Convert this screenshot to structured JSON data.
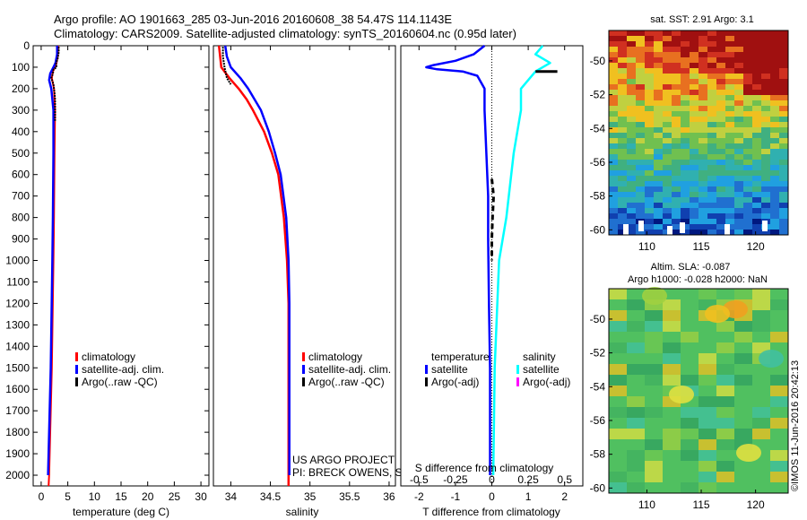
{
  "header": {
    "line1": "Argo profile: AO 1901663_285 03-Jun-2016 20160608_38 54.47S 114.1143E",
    "line2": "Climatology: CARS2009. Satellite-adjusted climatology: synTS_20160604.nc (0.95d later)"
  },
  "colors": {
    "climatology": "#ff0000",
    "satellite": "#0000ff",
    "argo": "#000000",
    "satellite_salinity": "#00ffff",
    "argo_salinity": "#ff00ff"
  },
  "chart_data": [
    {
      "id": "temperature",
      "type": "line",
      "xlabel": "temperature (deg C)",
      "xlim": [
        -1.5,
        31.5
      ],
      "xticks": [
        "0",
        "5",
        "10",
        "15",
        "20",
        "25",
        "30"
      ],
      "xtick_values": [
        0,
        5,
        10,
        15,
        20,
        25,
        30
      ],
      "ylim": [
        0,
        2050
      ],
      "yticks": [
        "0",
        "100",
        "200",
        "300",
        "400",
        "500",
        "600",
        "700",
        "800",
        "900",
        "1000",
        "1100",
        "1200",
        "1300",
        "1400",
        "1500",
        "1600",
        "1700",
        "1800",
        "1900",
        "2000"
      ],
      "ytick_values": [
        0,
        100,
        200,
        300,
        400,
        500,
        600,
        700,
        800,
        900,
        1000,
        1100,
        1200,
        1300,
        1400,
        1500,
        1600,
        1700,
        1800,
        1900,
        2000
      ],
      "legend": [
        "climatology",
        "satellite-adj. clim.",
        "Argo(..raw -QC)"
      ],
      "series": [
        {
          "name": "climatology",
          "depth": [
            0,
            50,
            80,
            100,
            120,
            150,
            200,
            300,
            500,
            800,
            1000,
            1500,
            2000,
            2050
          ],
          "values": [
            3.2,
            3.1,
            2.9,
            2.6,
            2.2,
            2.0,
            2.4,
            2.6,
            2.5,
            2.4,
            2.3,
            2.0,
            1.5,
            1.4
          ]
        },
        {
          "name": "satellite-adj. clim.",
          "depth": [
            0,
            40,
            80,
            100,
            130,
            160,
            200,
            300,
            500,
            800,
            1000,
            1500,
            2000
          ],
          "values": [
            3.0,
            3.0,
            2.7,
            2.3,
            1.7,
            1.5,
            1.9,
            2.3,
            2.3,
            2.2,
            2.1,
            1.8,
            1.3
          ]
        },
        {
          "name": "Argo(..raw -QC)",
          "depth": [
            5,
            30,
            60,
            80,
            100,
            110,
            130,
            150,
            180,
            220,
            250,
            300,
            350
          ],
          "values": [
            3.3,
            3.3,
            3.1,
            2.8,
            2.9,
            2.3,
            2.2,
            1.9,
            2.3,
            2.5,
            2.6,
            2.6,
            2.6
          ]
        }
      ]
    },
    {
      "id": "salinity",
      "type": "line",
      "xlabel": "salinity",
      "xlim": [
        33.78,
        36.08
      ],
      "xticks": [
        "34",
        "34.5",
        "35",
        "35.5",
        "36"
      ],
      "xtick_values": [
        34,
        34.5,
        35,
        35.5,
        36
      ],
      "ylim": [
        0,
        2050
      ],
      "legend": [
        "climatology",
        "satellite-adj. clim.",
        "Argo(..raw -QC)"
      ],
      "annotation": [
        "US ARGO PROJECT",
        "PI: BRECK OWENS, STEVE JAYNE, P.E. ROBBINS"
      ],
      "series": [
        {
          "name": "climatology",
          "depth": [
            0,
            100,
            150,
            200,
            250,
            300,
            400,
            500,
            600,
            800,
            1000,
            1200,
            1500,
            2000,
            2050
          ],
          "values": [
            33.85,
            33.88,
            33.98,
            34.1,
            34.2,
            34.28,
            34.42,
            34.52,
            34.6,
            34.67,
            34.71,
            34.73,
            34.73,
            34.73,
            34.73
          ]
        },
        {
          "name": "satellite-adj. clim.",
          "depth": [
            0,
            50,
            100,
            150,
            200,
            250,
            300,
            400,
            500,
            600,
            800,
            1000,
            1200,
            1500,
            2000
          ],
          "values": [
            33.93,
            33.95,
            34.0,
            34.12,
            34.22,
            34.3,
            34.38,
            34.48,
            34.56,
            34.63,
            34.7,
            34.73,
            34.74,
            34.74,
            34.74
          ]
        },
        {
          "name": "Argo(..raw -QC)",
          "depth": [
            5,
            50,
            100,
            150,
            180
          ],
          "values": [
            33.9,
            33.9,
            33.92,
            33.95,
            34.0
          ]
        }
      ]
    },
    {
      "id": "difference",
      "type": "line",
      "xlabel": "T difference from climatology",
      "xlabel2": "S difference from climatology",
      "xlim": [
        -2.5,
        2.5
      ],
      "xticks": [
        "-2",
        "-1",
        "0",
        "1",
        "2"
      ],
      "xtick_values": [
        -2,
        -1,
        0,
        1,
        2
      ],
      "xticks_top": [
        "-0.5",
        "-0.25",
        "0",
        "0.25",
        "0.5"
      ],
      "xtick_top_values": [
        -0.5,
        -0.25,
        0,
        0.25,
        0.5
      ],
      "ylim": [
        0,
        2050
      ],
      "legend_headers": [
        "temperature",
        "salinity"
      ],
      "legend": [
        "satellite",
        "Argo(-adj)",
        "satellite",
        "Argo(-adj)"
      ],
      "series": [
        {
          "name": "temperature satellite",
          "depth": [
            0,
            40,
            70,
            90,
            100,
            110,
            120,
            140,
            200,
            300,
            500,
            700,
            900,
            1200,
            1500,
            2000
          ],
          "values": [
            -0.2,
            -0.5,
            -1.0,
            -1.6,
            -1.8,
            -1.5,
            -0.8,
            -0.4,
            -0.2,
            -0.2,
            -0.15,
            -0.1,
            -0.1,
            -0.08,
            -0.05,
            -0.05
          ]
        },
        {
          "name": "temperature Argo(-adj)",
          "depth": [
            620,
            700,
            800,
            900,
            1000
          ],
          "values": [
            0.0,
            0.05,
            0.02,
            0.0,
            0.0
          ]
        },
        {
          "name": "salinity satellite",
          "depth": [
            0,
            40,
            80,
            120,
            200,
            300,
            500,
            800,
            1000,
            1500,
            2000
          ],
          "values": [
            0.35,
            0.3,
            0.4,
            0.3,
            0.2,
            0.2,
            0.15,
            0.1,
            0.05,
            0.02,
            0.01
          ]
        },
        {
          "name": "salinity Argo(-adj)",
          "depth": [
            120,
            120
          ],
          "values": [
            0.3,
            0.45
          ]
        }
      ]
    },
    {
      "id": "sst-map",
      "type": "heatmap",
      "title": "sat. SST: 2.91  Argo: 3.1",
      "xticks": [
        "110",
        "115",
        "120"
      ],
      "xtick_values": [
        110,
        115,
        120
      ],
      "yticks": [
        "-50",
        "-52",
        "-54",
        "-56",
        "-58",
        "-60"
      ],
      "ytick_values": [
        -50,
        -52,
        -54,
        -56,
        -58,
        -60
      ],
      "xlim": [
        106.5,
        123
      ],
      "ylim": [
        -60.3,
        -48.2
      ]
    },
    {
      "id": "sla-map",
      "type": "heatmap",
      "title": "Altim. SLA: -0.087",
      "subtitle": "Argo h1000: -0.028  h2000: NaN",
      "xticks": [
        "110",
        "115",
        "120"
      ],
      "xtick_values": [
        110,
        115,
        120
      ],
      "yticks": [
        "-50",
        "-52",
        "-54",
        "-56",
        "-58",
        "-60"
      ],
      "ytick_values": [
        -50,
        -52,
        -54,
        -56,
        -58,
        -60
      ],
      "xlim": [
        106.5,
        123
      ],
      "ylim": [
        -60.3,
        -48.2
      ]
    }
  ],
  "watermark": "©IMOS 11-Jun-2016 20:42:13"
}
